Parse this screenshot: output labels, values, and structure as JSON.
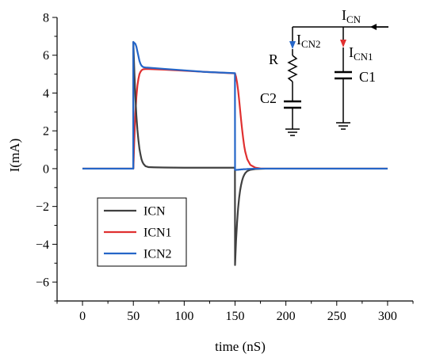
{
  "chart_data": {
    "type": "line",
    "xlabel": "time (nS)",
    "ylabel": "I(mA)",
    "xlim": [
      -25,
      325
    ],
    "ylim": [
      -7,
      8
    ],
    "xticks": [
      0,
      50,
      100,
      150,
      200,
      250,
      300
    ],
    "yticks": [
      -6,
      -4,
      -2,
      0,
      2,
      4,
      6,
      8
    ],
    "xtick_labels": [
      "0",
      "50",
      "100",
      "150",
      "200",
      "250",
      "300"
    ],
    "ytick_labels": [
      "−6",
      "−4",
      "−2",
      "0",
      "2",
      "4",
      "6",
      "8"
    ],
    "legend_position": "bottom-left",
    "series": [
      {
        "name": "ICN",
        "color": "#404040",
        "x": [
          0,
          49.9,
          50,
          51,
          52,
          53,
          54,
          55,
          56,
          57,
          58,
          59,
          60,
          62,
          65,
          70,
          80,
          100,
          120,
          149.9,
          150,
          151,
          152,
          153,
          154,
          155,
          156,
          157,
          158,
          159,
          160,
          162,
          165,
          170,
          175,
          180,
          200,
          250,
          300
        ],
        "y": [
          0,
          0,
          6.7,
          5.1,
          3.8,
          2.8,
          2.05,
          1.5,
          1.05,
          0.75,
          0.5,
          0.35,
          0.25,
          0.13,
          0.08,
          0.07,
          0.06,
          0.05,
          0.05,
          0.05,
          -5.1,
          -3.8,
          -2.85,
          -2.1,
          -1.55,
          -1.15,
          -0.85,
          -0.62,
          -0.45,
          -0.33,
          -0.24,
          -0.13,
          -0.06,
          -0.02,
          -0.01,
          0,
          0,
          0,
          0
        ]
      },
      {
        "name": "ICN1",
        "color": "#e03030",
        "x": [
          0,
          49.9,
          50,
          51,
          52,
          53,
          54,
          55,
          56,
          57,
          58,
          59,
          60,
          62,
          65,
          70,
          80,
          100,
          120,
          149.9,
          150,
          151,
          152,
          153,
          154,
          155,
          156,
          157,
          158,
          159,
          160,
          162,
          165,
          170,
          175,
          180,
          200,
          250,
          300
        ],
        "y": [
          0,
          0,
          0,
          1.6,
          2.9,
          3.8,
          4.4,
          4.75,
          5.0,
          5.12,
          5.2,
          5.24,
          5.26,
          5.27,
          5.27,
          5.26,
          5.24,
          5.18,
          5.12,
          5.04,
          5.04,
          4.85,
          4.55,
          4.15,
          3.65,
          3.1,
          2.55,
          2.05,
          1.6,
          1.2,
          0.9,
          0.5,
          0.2,
          0.05,
          0.01,
          0,
          0,
          0,
          0
        ]
      },
      {
        "name": "ICN2",
        "color": "#2566c8",
        "x": [
          0,
          49.9,
          50,
          51,
          52,
          53,
          54,
          55,
          56,
          57,
          58,
          59,
          60,
          62,
          65,
          70,
          80,
          100,
          120,
          149.9,
          150,
          151,
          152,
          153,
          154,
          155,
          156,
          157,
          158,
          159,
          160,
          162,
          165,
          170,
          175,
          180,
          200,
          250,
          300
        ],
        "y": [
          0,
          0,
          6.7,
          6.65,
          6.6,
          6.45,
          6.2,
          5.95,
          5.7,
          5.55,
          5.45,
          5.4,
          5.37,
          5.35,
          5.34,
          5.32,
          5.28,
          5.2,
          5.12,
          5.05,
          -0.06,
          -0.07,
          -0.06,
          -0.06,
          -0.05,
          -0.05,
          -0.04,
          -0.04,
          -0.03,
          -0.03,
          -0.03,
          -0.02,
          -0.01,
          0,
          0,
          0,
          0,
          0,
          0
        ]
      }
    ]
  },
  "circuit": {
    "label_icn_main": "I",
    "label_icn_sub": "CN",
    "label_icn2_main": "I",
    "label_icn2_sub": "CN2",
    "label_icn1_main": "I",
    "label_icn1_sub": "CN1",
    "label_r": "R",
    "label_c1": "C1",
    "label_c2": "C2",
    "arrow_icn2_color": "#2566c8",
    "arrow_icn1_color": "#e03030"
  }
}
